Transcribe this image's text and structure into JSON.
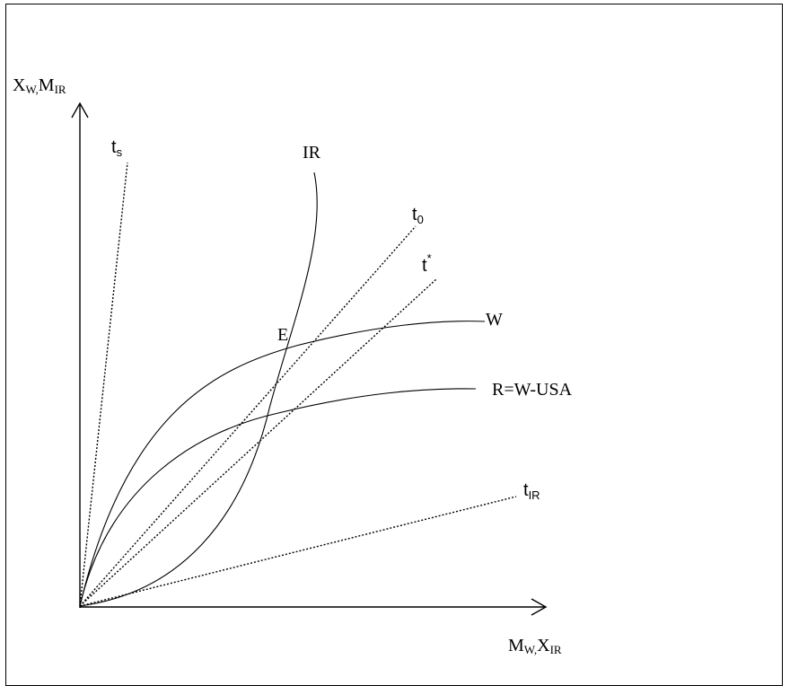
{
  "axes": {
    "y_label_main": "X",
    "y_label_sub1": "W,",
    "y_label_main2": "M",
    "y_label_sub2": "IR",
    "x_label_main": "M",
    "x_label_sub1": "W,",
    "x_label_main2": "X",
    "x_label_sub2": "IR"
  },
  "curves": {
    "ir": "IR",
    "w": "W",
    "r": "R=W-USA"
  },
  "rays": {
    "ts_main": "t",
    "ts_sub": "s",
    "t0_main": "t",
    "t0_sub": "0",
    "tstar_main": "t",
    "tstar_sup": "*",
    "tir_main": "t",
    "tir_sub": "IR"
  },
  "points": {
    "e": "E"
  }
}
